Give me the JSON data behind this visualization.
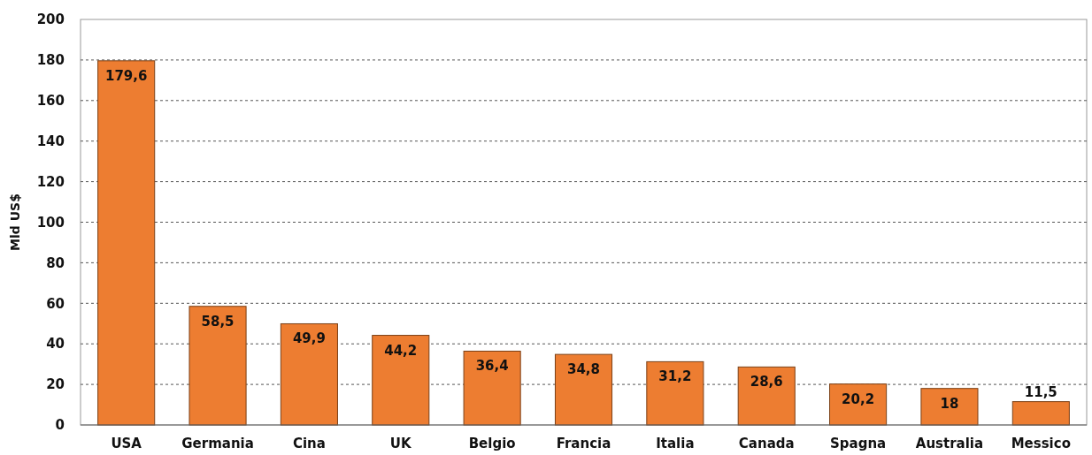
{
  "chart_data": {
    "type": "bar",
    "ylabel": "Mld US$",
    "categories": [
      "USA",
      "Germania",
      "Cina",
      "UK",
      "Belgio",
      "Francia",
      "Italia",
      "Canada",
      "Spagna",
      "Australia",
      "Messico"
    ],
    "values": [
      179.6,
      58.5,
      49.9,
      44.2,
      36.4,
      34.8,
      31.2,
      28.6,
      20.2,
      18,
      11.5
    ],
    "value_labels": [
      "179,6",
      "58,5",
      "49,9",
      "44,2",
      "36,4",
      "34,8",
      "31,2",
      "28,6",
      "20,2",
      "18",
      "11,5"
    ],
    "color": "#ed7d31",
    "ylim": [
      0,
      200
    ],
    "yticks": [
      0,
      20,
      40,
      60,
      80,
      100,
      120,
      140,
      160,
      180,
      200
    ],
    "grid": "y"
  }
}
